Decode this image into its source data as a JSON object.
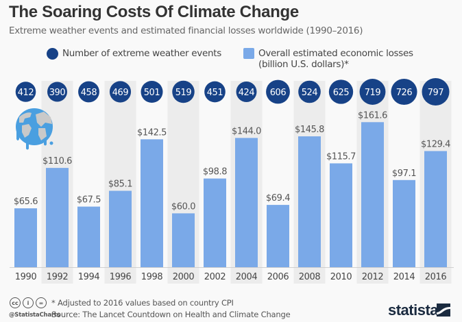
{
  "header": {
    "title": "The Soaring Costs Of Climate Change",
    "subtitle": "Extreme weather events and estimated financial losses worldwide (1990–2016)"
  },
  "legend": {
    "events_label": "Number of extreme weather events",
    "losses_label_line1": "Overall estimated economic losses",
    "losses_label_line2": "(billion U.S. dollars)*"
  },
  "colors": {
    "events": "#174287",
    "losses": "#7aa9e8",
    "band": "#ececec",
    "text": "#555555"
  },
  "chart_data": {
    "type": "bar",
    "title": "The Soaring Costs Of Climate Change",
    "subtitle": "Extreme weather events and estimated financial losses worldwide (1990–2016)",
    "xlabel": "",
    "ylabel": "",
    "categories": [
      "1990",
      "1992",
      "1994",
      "1996",
      "1998",
      "2000",
      "2002",
      "2004",
      "2006",
      "2008",
      "2010",
      "2012",
      "2014",
      "2016"
    ],
    "series": [
      {
        "name": "Overall estimated economic losses (billion U.S. dollars)*",
        "mark": "bar",
        "values": [
          65.6,
          110.6,
          67.5,
          85.1,
          142.5,
          60.0,
          98.8,
          144.0,
          69.4,
          145.8,
          115.7,
          161.6,
          97.1,
          129.4
        ],
        "labels": [
          "$65.6",
          "$110.6",
          "$67.5",
          "$85.1",
          "$142.5",
          "$60.0",
          "$98.8",
          "$144.0",
          "$69.4",
          "$145.8",
          "$115.7",
          "$161.6",
          "$97.1",
          "$129.4"
        ]
      },
      {
        "name": "Number of extreme weather events",
        "mark": "bubble",
        "values": [
          412,
          390,
          458,
          469,
          501,
          519,
          451,
          424,
          606,
          524,
          625,
          719,
          726,
          797
        ]
      }
    ],
    "ylim": [
      0,
      170
    ],
    "grid": false,
    "legend_position": "top",
    "alternating_bands": true
  },
  "footer": {
    "footnote": "* Adjusted to 2016 values based on country CPI",
    "source": "Source: The Lancet Countdown on Health and Climate Change",
    "handle": "@StatistaCharts",
    "brand": "statista",
    "license_icons": [
      "cc",
      "by",
      "nd"
    ]
  }
}
